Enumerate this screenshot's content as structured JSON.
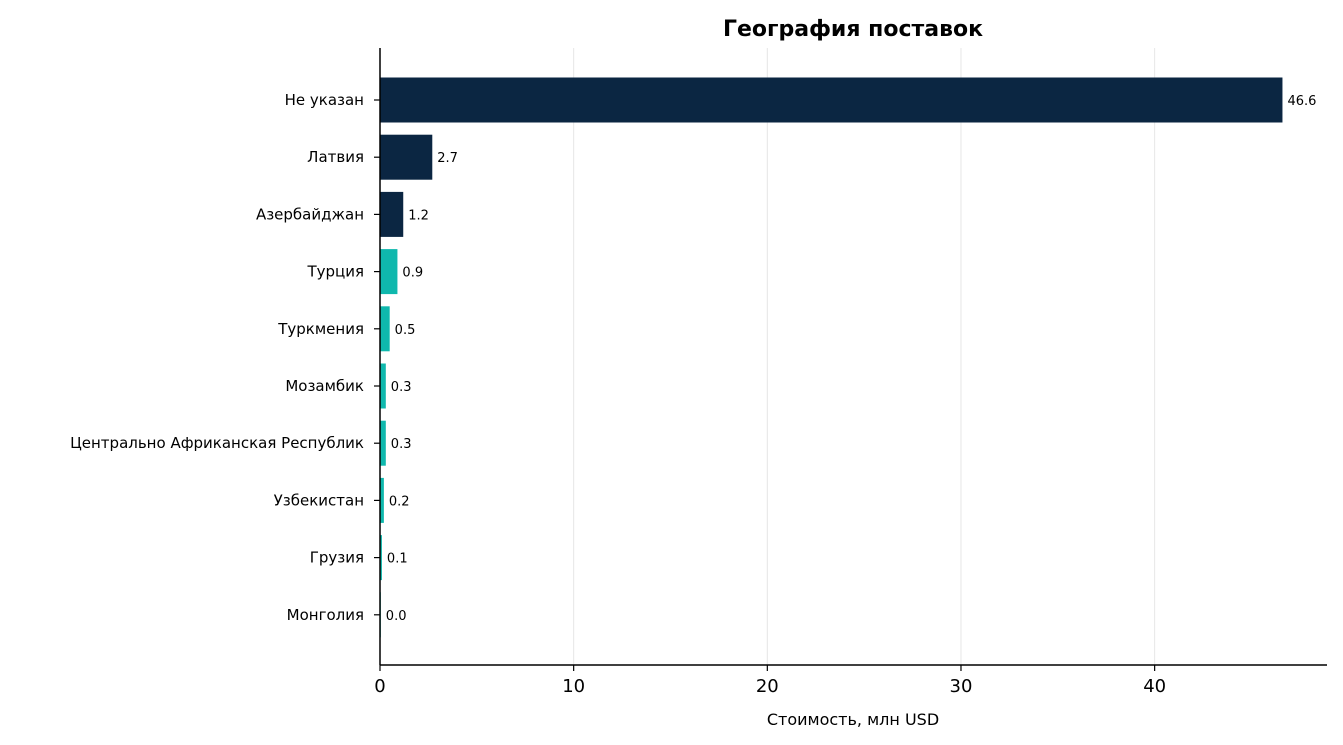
{
  "chart_data": {
    "type": "bar",
    "orientation": "horizontal",
    "title": "География поставок",
    "xlabel": "Стоимость, млн USD",
    "ylabel": "",
    "xlim": [
      0,
      48.9
    ],
    "xticks": [
      0,
      10,
      20,
      30,
      40
    ],
    "grid": "x",
    "categories": [
      "Не указан",
      "Латвия",
      "Азербайджан",
      "Турция",
      "Туркмения",
      "Мозамбик",
      "Центрально Африканская Республик",
      "Узбекистан",
      "Грузия",
      "Монголия"
    ],
    "values": [
      46.6,
      2.7,
      1.2,
      0.9,
      0.5,
      0.3,
      0.3,
      0.2,
      0.1,
      0.02
    ],
    "value_labels": [
      "46.6",
      "2.7",
      "1.2",
      "0.9",
      "0.5",
      "0.3",
      "0.3",
      "0.2",
      "0.1",
      "0.0"
    ],
    "colors": [
      "#0b2642",
      "#0b2642",
      "#0b2642",
      "#0fb8ad",
      "#0fb8ad",
      "#0fb8ad",
      "#0fb8ad",
      "#0fb8ad",
      "#0fb8ad",
      "#0fb8ad"
    ]
  }
}
